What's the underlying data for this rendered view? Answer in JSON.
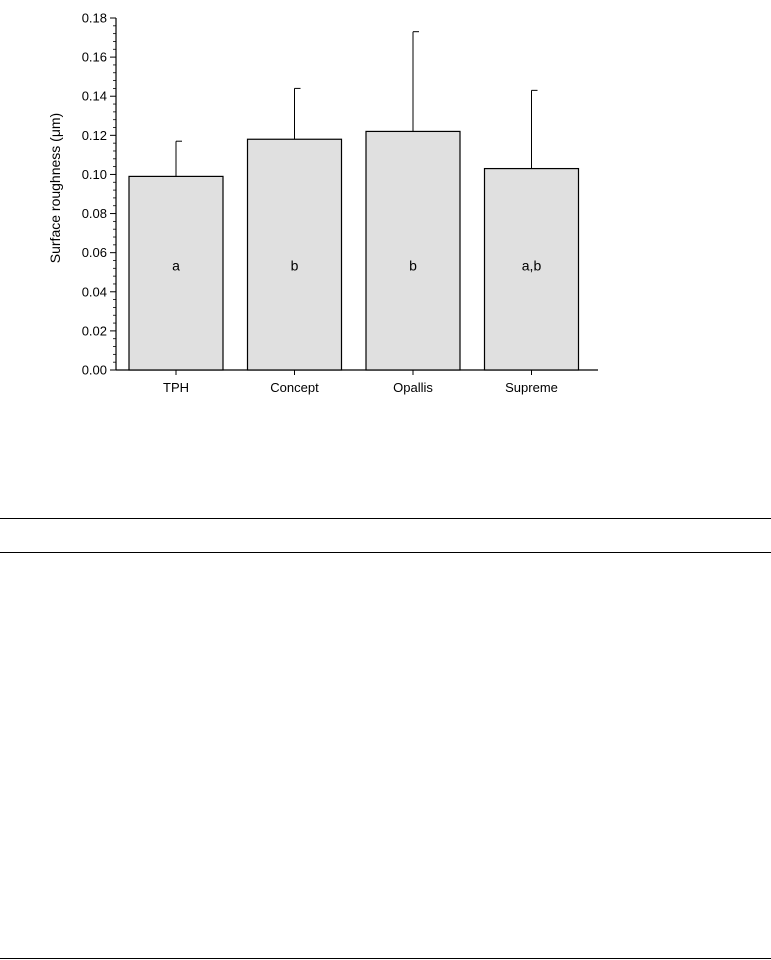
{
  "chart_data": {
    "type": "bar",
    "title": "",
    "xlabel": "",
    "ylabel": "Surface roughness (μm)",
    "ylim": [
      0,
      0.18
    ],
    "yticks": [
      "0.00",
      "0.02",
      "0.04",
      "0.06",
      "0.08",
      "0.10",
      "0.12",
      "0.14",
      "0.16",
      "0.18"
    ],
    "categories": [
      "TPH",
      "Concept",
      "Opallis",
      "Supreme"
    ],
    "values": [
      0.099,
      0.118,
      0.122,
      0.103
    ],
    "error_upper": [
      0.117,
      0.144,
      0.173,
      0.143
    ],
    "significance_labels": [
      "a",
      "b",
      "b",
      "a,b"
    ],
    "bar_color": "#e0e0e0",
    "grid": false,
    "legend": "none"
  }
}
